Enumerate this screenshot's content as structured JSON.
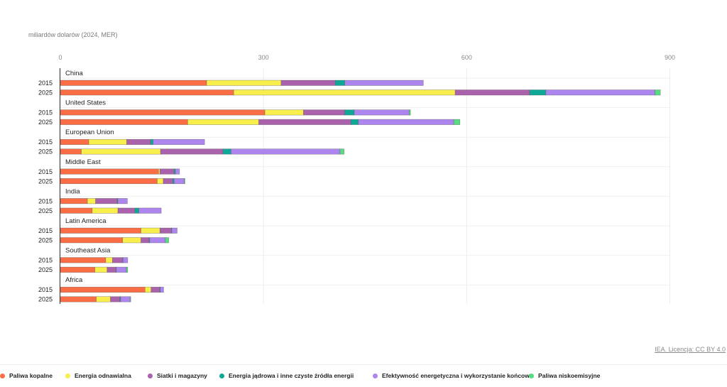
{
  "chart_data": {
    "type": "bar",
    "orientation": "horizontal",
    "stacked": true,
    "unit_label": "miliardów dolarów (2024, MER)",
    "xlim": [
      0,
      900
    ],
    "xticks": [
      0,
      300,
      600,
      900
    ],
    "grid": true,
    "legend_position": "bottom-left",
    "source": "IEA. Licencja: CC BY 4.0",
    "series": [
      {
        "name": "Paliwa kopalne",
        "color": "#fb6e45"
      },
      {
        "name": "Energia odnawialna",
        "color": "#f9ef4c"
      },
      {
        "name": "Siatki i magazyny",
        "color": "#ab62ac"
      },
      {
        "name": "Energia jądrowa i inne czyste źródła energii",
        "color": "#0ea896"
      },
      {
        "name": "Efektywność energetyczna i wykorzystanie końcowe",
        "color": "#ad85ee"
      },
      {
        "name": "Paliwa niskoemisyjne",
        "color": "#56dd82"
      }
    ],
    "groups": [
      {
        "label": "China",
        "rows": [
          {
            "year": "2015",
            "values": [
              216,
              110,
              80,
              14,
              116,
              0
            ]
          },
          {
            "year": "2025",
            "values": [
              256,
              327,
              110,
              24,
              161,
              8
            ]
          }
        ]
      },
      {
        "label": "United States",
        "rows": [
          {
            "year": "2015",
            "values": [
              302,
              57,
              61,
              14,
              81,
              2
            ]
          },
          {
            "year": "2025",
            "values": [
              188,
              105,
              136,
              11,
              141,
              9
            ]
          }
        ]
      },
      {
        "label": "European Union",
        "rows": [
          {
            "year": "2015",
            "values": [
              42,
              56,
              35,
              4,
              76,
              0
            ]
          },
          {
            "year": "2025",
            "values": [
              31,
              117,
              92,
              12,
              161,
              6
            ]
          }
        ]
      },
      {
        "label": "Middle East",
        "rows": [
          {
            "year": "2015",
            "values": [
              145,
              2,
              21,
              2,
              6,
              0
            ]
          },
          {
            "year": "2025",
            "values": [
              143,
              9,
              14,
              2,
              15,
              1
            ]
          }
        ]
      },
      {
        "label": "India",
        "rows": [
          {
            "year": "2015",
            "values": [
              40,
              12,
              32,
              1,
              14,
              0
            ]
          },
          {
            "year": "2025",
            "values": [
              47,
              38,
              25,
              6,
              33,
              0
            ]
          }
        ]
      },
      {
        "label": "Latin America",
        "rows": [
          {
            "year": "2015",
            "values": [
              119,
              28,
              17,
              0.5,
              8,
              0
            ]
          },
          {
            "year": "2025",
            "values": [
              92,
              27,
              12,
              1,
              23,
              5
            ]
          }
        ]
      },
      {
        "label": "Southeast Asia",
        "rows": [
          {
            "year": "2015",
            "values": [
              67,
              10,
              15,
              0.5,
              7,
              0
            ]
          },
          {
            "year": "2025",
            "values": [
              51,
              18,
              13,
              0.5,
              15,
              2
            ]
          }
        ]
      },
      {
        "label": "Africa",
        "rows": [
          {
            "year": "2015",
            "values": [
              125,
              9,
              13,
              0.5,
              5,
              0
            ]
          },
          {
            "year": "2025",
            "values": [
              53,
              21,
              14,
              1,
              14,
              1
            ]
          }
        ]
      }
    ]
  }
}
